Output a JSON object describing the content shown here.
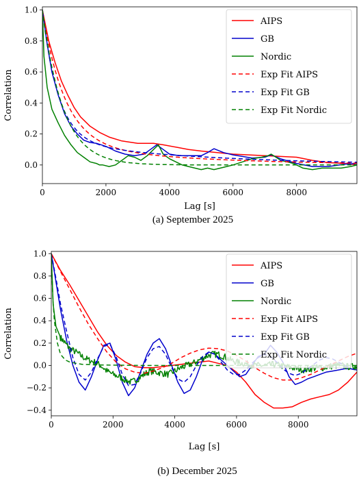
{
  "chart_data": [
    {
      "type": "line",
      "caption": "(a) September 2025",
      "xlabel": "Lag [s]",
      "ylabel": "Correlation",
      "xlim": [
        0,
        9900
      ],
      "ylim": [
        -0.12,
        1.02
      ],
      "xticks": [
        0,
        2000,
        4000,
        6000,
        8000
      ],
      "xtick_labels": [
        "0",
        "2000",
        "4000",
        "6000",
        "8000"
      ],
      "yticks": [
        0.0,
        0.2,
        0.4,
        0.6,
        0.8,
        1.0
      ],
      "ytick_labels": [
        "0.0",
        "0.2",
        "0.4",
        "0.6",
        "0.8",
        "1.0"
      ],
      "grid": false,
      "legend_position": "top-right",
      "series": [
        {
          "name": "AIPS",
          "color": "#ff0000",
          "style": "solid",
          "x": [
            0,
            200,
            400,
            600,
            800,
            1000,
            1200,
            1500,
            1800,
            2100,
            2500,
            3000,
            3500,
            3800,
            4200,
            4600,
            5000,
            5500,
            6000,
            6500,
            7000,
            7500,
            8000,
            8500,
            9000,
            9500,
            9900
          ],
          "y": [
            1.0,
            0.8,
            0.66,
            0.54,
            0.45,
            0.37,
            0.31,
            0.25,
            0.21,
            0.18,
            0.155,
            0.14,
            0.14,
            0.13,
            0.115,
            0.1,
            0.09,
            0.08,
            0.07,
            0.065,
            0.06,
            0.055,
            0.05,
            0.03,
            0.015,
            0.01,
            0.0
          ]
        },
        {
          "name": "GB",
          "color": "#0000cc",
          "style": "solid",
          "x": [
            0,
            150,
            300,
            500,
            700,
            900,
            1100,
            1300,
            1500,
            1700,
            2000,
            2300,
            2600,
            2900,
            3200,
            3400,
            3600,
            3800,
            4000,
            4300,
            4600,
            5000,
            5200,
            5400,
            5700,
            6000,
            6300,
            6600,
            7000,
            7200,
            7500,
            8000,
            8500,
            9000,
            9500,
            9900
          ],
          "y": [
            1.0,
            0.78,
            0.6,
            0.45,
            0.33,
            0.25,
            0.2,
            0.16,
            0.145,
            0.14,
            0.12,
            0.09,
            0.07,
            0.06,
            0.07,
            0.1,
            0.13,
            0.1,
            0.07,
            0.06,
            0.06,
            0.06,
            0.08,
            0.105,
            0.08,
            0.065,
            0.055,
            0.045,
            0.05,
            0.065,
            0.04,
            0.01,
            -0.01,
            -0.01,
            0.005,
            0.01
          ]
        },
        {
          "name": "Nordic",
          "color": "#008000",
          "style": "solid",
          "x": [
            0,
            50,
            150,
            300,
            500,
            700,
            900,
            1100,
            1300,
            1500,
            1700,
            1800,
            1900,
            2100,
            2300,
            2500,
            2700,
            2900,
            3100,
            3300,
            3500,
            3650,
            3800,
            4000,
            4200,
            4400,
            4600,
            4800,
            5000,
            5200,
            5400,
            5600,
            5800,
            6000,
            6300,
            6600,
            6900,
            7100,
            7200,
            7350,
            7500,
            7700,
            7900,
            8200,
            8500,
            8800,
            9100,
            9400,
            9700,
            9900
          ],
          "y": [
            1.0,
            0.7,
            0.5,
            0.36,
            0.27,
            0.19,
            0.13,
            0.08,
            0.05,
            0.02,
            0.01,
            0.0,
            0.0,
            -0.01,
            0.0,
            0.03,
            0.06,
            0.05,
            0.03,
            0.06,
            0.1,
            0.13,
            0.07,
            0.04,
            0.02,
            0.0,
            -0.01,
            -0.02,
            -0.03,
            -0.02,
            -0.03,
            -0.02,
            -0.01,
            0.0,
            0.02,
            0.04,
            0.05,
            0.06,
            0.07,
            0.05,
            0.03,
            0.02,
            0.01,
            -0.02,
            -0.03,
            -0.02,
            -0.02,
            -0.02,
            -0.01,
            0.0
          ]
        },
        {
          "name": "Exp Fit AIPS",
          "color": "#ff0000",
          "style": "dashed",
          "decay": {
            "a": 0.86,
            "tau": 700,
            "c": 0.14,
            "tau2": 4000
          }
        },
        {
          "name": "Exp Fit GB",
          "color": "#0000cc",
          "style": "dashed",
          "decay": {
            "a": 0.84,
            "tau": 500,
            "c": 0.16,
            "tau2": 4500
          }
        },
        {
          "name": "Exp Fit Nordic",
          "color": "#008000",
          "style": "dashed",
          "decay": {
            "a": 1.0,
            "tau": 650,
            "c": 0.0,
            "tau2": 1
          }
        }
      ]
    },
    {
      "type": "line",
      "caption": "(b) December 2025",
      "xlabel": "Lag [s]",
      "ylabel": "Correlation",
      "xlim": [
        0,
        9900
      ],
      "ylim": [
        -0.45,
        1.02
      ],
      "xticks": [
        0,
        2000,
        4000,
        6000,
        8000
      ],
      "xtick_labels": [
        "0",
        "2000",
        "4000",
        "6000",
        "8000"
      ],
      "yticks": [
        -0.4,
        -0.2,
        0.0,
        0.2,
        0.4,
        0.6,
        0.8,
        1.0
      ],
      "ytick_labels": [
        "−0.4",
        "−0.2",
        "0.0",
        "0.2",
        "0.4",
        "0.6",
        "0.8",
        "1.0"
      ],
      "grid": false,
      "legend_position": "top-right",
      "series": [
        {
          "name": "AIPS",
          "color": "#ff0000",
          "style": "solid",
          "x": [
            0,
            300,
            600,
            900,
            1200,
            1500,
            1800,
            2100,
            2400,
            2700,
            3000,
            3300,
            3600,
            3900,
            4200,
            4500,
            4800,
            5100,
            5400,
            5700,
            6000,
            6300,
            6600,
            6900,
            7200,
            7500,
            7800,
            8100,
            8400,
            8700,
            9000,
            9300,
            9600,
            9900
          ],
          "y": [
            1.0,
            0.85,
            0.72,
            0.58,
            0.44,
            0.3,
            0.18,
            0.09,
            0.03,
            -0.01,
            -0.02,
            -0.02,
            -0.01,
            0.0,
            0.01,
            0.02,
            0.03,
            0.04,
            0.02,
            0.0,
            -0.06,
            -0.15,
            -0.26,
            -0.33,
            -0.38,
            -0.38,
            -0.37,
            -0.33,
            -0.3,
            -0.28,
            -0.26,
            -0.22,
            -0.15,
            -0.06
          ]
        },
        {
          "name": "GB",
          "color": "#0000cc",
          "style": "solid",
          "x": [
            0,
            150,
            300,
            500,
            700,
            900,
            1100,
            1300,
            1500,
            1700,
            1900,
            2100,
            2300,
            2500,
            2700,
            2900,
            3100,
            3300,
            3500,
            3700,
            3900,
            4100,
            4300,
            4500,
            4700,
            4900,
            5100,
            5300,
            5500,
            5700,
            5900,
            6100,
            6300,
            6500,
            6700,
            6900,
            7100,
            7300,
            7500,
            7700,
            7900,
            8100,
            8300,
            8500,
            8700,
            8900,
            9100,
            9300,
            9500,
            9700,
            9900
          ],
          "y": [
            1.0,
            0.75,
            0.5,
            0.22,
            0.0,
            -0.15,
            -0.22,
            -0.1,
            0.05,
            0.18,
            0.2,
            0.05,
            -0.15,
            -0.27,
            -0.2,
            -0.05,
            0.1,
            0.2,
            0.24,
            0.15,
            0.0,
            -0.15,
            -0.25,
            -0.22,
            -0.1,
            0.05,
            0.12,
            0.1,
            0.05,
            0.0,
            -0.05,
            -0.1,
            -0.08,
            0.0,
            0.08,
            0.1,
            0.18,
            0.12,
            0.03,
            -0.1,
            -0.17,
            -0.15,
            -0.12,
            -0.1,
            -0.08,
            -0.06,
            -0.05,
            -0.04,
            -0.03,
            -0.03,
            -0.04
          ]
        },
        {
          "name": "Nordic",
          "color": "#008000",
          "style": "solid",
          "noisy": true,
          "x": [
            0,
            60,
            150,
            300,
            450,
            600,
            800,
            1000,
            1200,
            1400,
            1600,
            1800,
            2000,
            2200,
            2400,
            2600,
            2800,
            3000,
            3200,
            3400,
            3600,
            3800,
            4000,
            4200,
            4400,
            4600,
            4800,
            5000,
            5200,
            5400,
            5600,
            5800,
            6000,
            6200,
            6400,
            6600,
            6800,
            7000,
            7200,
            7400,
            7600,
            7800,
            8000,
            8200,
            8400,
            8600,
            8800,
            9000,
            9200,
            9400,
            9600,
            9800,
            9900
          ],
          "y": [
            1.0,
            0.55,
            0.35,
            0.25,
            0.2,
            0.15,
            0.12,
            0.08,
            0.05,
            0.03,
            0.0,
            -0.05,
            -0.08,
            -0.1,
            -0.13,
            -0.15,
            -0.12,
            -0.08,
            -0.05,
            -0.06,
            -0.07,
            -0.08,
            -0.05,
            -0.02,
            0.0,
            0.02,
            0.05,
            0.08,
            0.1,
            0.1,
            0.08,
            0.05,
            0.03,
            0.02,
            0.01,
            0.0,
            0.0,
            0.0,
            0.01,
            0.0,
            -0.01,
            -0.02,
            -0.03,
            -0.04,
            -0.03,
            -0.02,
            -0.02,
            -0.01,
            0.0,
            0.0,
            -0.01,
            -0.01,
            -0.01
          ]
        },
        {
          "name": "Exp Fit AIPS",
          "color": "#ff0000",
          "style": "dashed",
          "x": [
            0,
            300,
            600,
            900,
            1200,
            1500,
            1800,
            2100,
            2400,
            2700,
            3000,
            3300,
            3600,
            3900,
            4200,
            4500,
            4800,
            5100,
            5400,
            5700,
            6000,
            6300,
            6600,
            6900,
            7200,
            7500,
            7800,
            8100,
            8400,
            8700,
            9000,
            9300,
            9600,
            9900
          ],
          "y": [
            1.0,
            0.84,
            0.68,
            0.52,
            0.37,
            0.24,
            0.12,
            0.03,
            -0.03,
            -0.06,
            -0.07,
            -0.05,
            -0.02,
            0.02,
            0.07,
            0.11,
            0.14,
            0.155,
            0.15,
            0.13,
            0.09,
            0.04,
            -0.02,
            -0.07,
            -0.11,
            -0.13,
            -0.13,
            -0.11,
            -0.08,
            -0.04,
            0.0,
            0.04,
            0.08,
            0.11
          ]
        },
        {
          "name": "Exp Fit GB",
          "color": "#0000cc",
          "style": "dashed",
          "x": [
            0,
            150,
            300,
            500,
            700,
            900,
            1100,
            1300,
            1500,
            1700,
            1900,
            2100,
            2300,
            2500,
            2700,
            2900,
            3100,
            3300,
            3500,
            3700,
            3900,
            4100,
            4300,
            4500,
            4700,
            4900,
            5100,
            5300,
            5500,
            5700,
            5900,
            6100,
            6300,
            6500,
            6700,
            6900,
            7100,
            7300,
            7500,
            7700,
            7900,
            8100,
            8300,
            8500,
            8700,
            8900,
            9100,
            9300,
            9500,
            9700,
            9900
          ],
          "y": [
            1.0,
            0.78,
            0.55,
            0.3,
            0.07,
            -0.08,
            -0.13,
            -0.06,
            0.06,
            0.17,
            0.19,
            0.08,
            -0.08,
            -0.18,
            -0.17,
            -0.06,
            0.07,
            0.15,
            0.17,
            0.1,
            -0.02,
            -0.12,
            -0.15,
            -0.1,
            0.0,
            0.08,
            0.12,
            0.1,
            0.03,
            -0.04,
            -0.08,
            -0.08,
            -0.04,
            0.02,
            0.07,
            0.1,
            0.08,
            0.03,
            -0.03,
            -0.07,
            -0.09,
            -0.07,
            -0.03,
            0.01,
            0.05,
            0.07,
            0.06,
            0.03,
            0.0,
            -0.03,
            -0.04
          ]
        },
        {
          "name": "Exp Fit Nordic",
          "color": "#008000",
          "style": "dashed",
          "x": [
            0,
            50,
            100,
            200,
            300,
            450,
            600,
            800,
            1000,
            1500,
            2000,
            3000,
            4000,
            5000,
            6000,
            7000,
            8000,
            9000,
            9900
          ],
          "y": [
            1.0,
            0.6,
            0.4,
            0.2,
            0.1,
            0.05,
            0.03,
            0.02,
            0.01,
            0.005,
            0.003,
            0.0,
            0.0,
            0.0,
            0.0,
            0.0,
            0.0,
            0.0,
            0.0
          ]
        }
      ]
    }
  ]
}
